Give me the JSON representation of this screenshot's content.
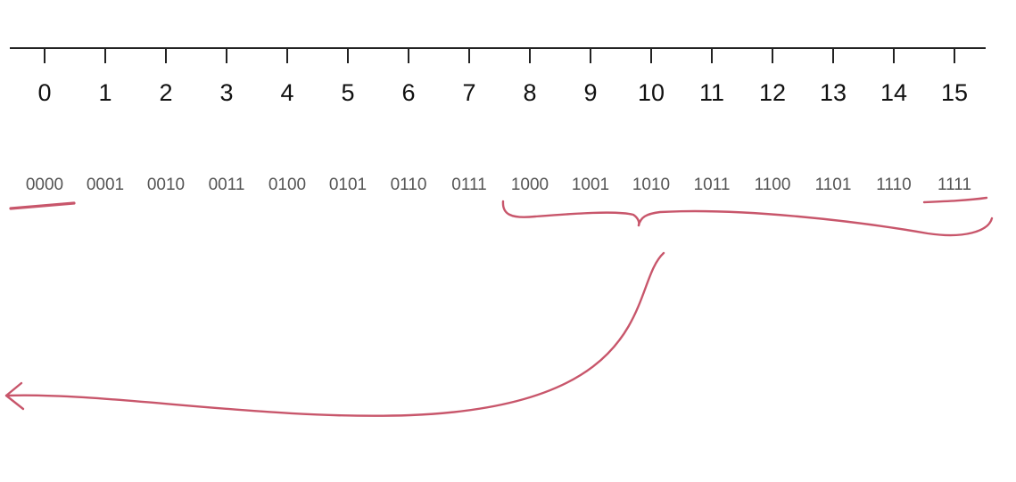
{
  "number_line": {
    "values": [
      "0",
      "1",
      "2",
      "3",
      "4",
      "5",
      "6",
      "7",
      "8",
      "9",
      "10",
      "11",
      "12",
      "13",
      "14",
      "15"
    ],
    "binary": [
      "0000",
      "0001",
      "0010",
      "0011",
      "0100",
      "0101",
      "0110",
      "0111",
      "1000",
      "1001",
      "1010",
      "1011",
      "1100",
      "1101",
      "1110",
      "1111"
    ]
  },
  "colors": {
    "axis": "#222222",
    "ink": "#c8566b",
    "tick_text": "#111111",
    "binary_text": "#555555"
  },
  "annotations": {
    "underlined_items": [
      "0000",
      "1111"
    ],
    "brace_range": [
      "1000",
      "1111"
    ],
    "arrow_direction": "left"
  }
}
